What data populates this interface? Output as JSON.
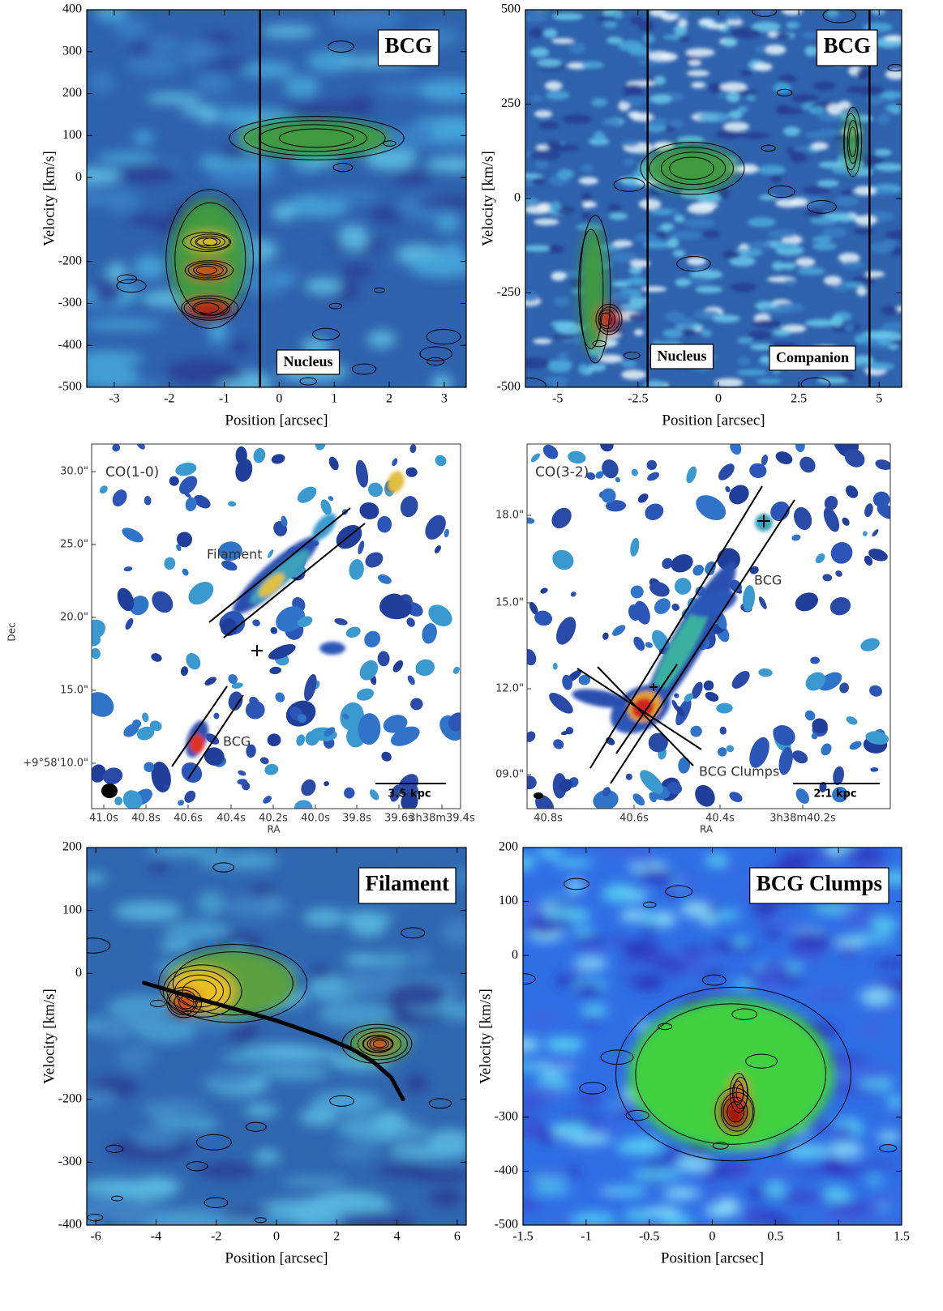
{
  "chart_data": [
    {
      "type": "pv",
      "xlabel": "Position [arcsec]",
      "ylabel": "Velocity [km/s]",
      "title": "BCG",
      "labels": [
        "Nucleus"
      ],
      "xlim": [
        -3.5,
        3.4
      ],
      "ylim": [
        -500,
        400
      ],
      "xticks": [
        -3,
        -2,
        -1,
        0,
        1,
        2,
        3
      ],
      "yticks": [
        -500,
        -400,
        -300,
        -200,
        0,
        100,
        200,
        300,
        400
      ],
      "vlines": [
        -0.35
      ]
    },
    {
      "type": "pv",
      "xlabel": "Position [arcsec]",
      "ylabel": "Velocity [km/s]",
      "title": "BCG",
      "labels": [
        "Nucleus",
        "Companion"
      ],
      "xlim": [
        -6,
        5.7
      ],
      "ylim": [
        -500,
        500
      ],
      "xticks": [
        -5,
        -2.5,
        0,
        2.5,
        5
      ],
      "yticks": [
        -500,
        -250,
        0,
        250,
        500
      ],
      "vlines": [
        -2.2,
        4.7
      ]
    },
    {
      "type": "map",
      "name": "CO(1-0)",
      "annotations": [
        "Filament",
        "BCG"
      ],
      "scale_bar": "3.5 kpc",
      "xlabel": "RA",
      "ylabel": "Dec",
      "ytick_labels": [
        "30.0\"",
        "25.0\"",
        "20.0\"",
        "15.0\"",
        "+9°58'10.0\""
      ],
      "xtick_labels": [
        "41.0s",
        "40.8s",
        "40.6s",
        "40.4s",
        "40.2s",
        "40.0s",
        "39.8s",
        "39.6s",
        "3h38m39.4s"
      ]
    },
    {
      "type": "map",
      "name": "CO(3-2)",
      "annotations": [
        "BCG",
        "BCG Clumps"
      ],
      "scale_bar": "2.1 kpc",
      "xlabel": "RA",
      "ytick_labels": [
        "18.0\"",
        "15.0\"",
        "12.0\"",
        "09.0\""
      ],
      "xtick_labels": [
        "40.8s",
        "40.6s",
        "40.4s",
        "3h38m40.2s"
      ]
    },
    {
      "type": "pv",
      "xlabel": "Position [arcsec]",
      "ylabel": "Velocity [km/s]",
      "title": "Filament",
      "xlim": [
        -6.3,
        6.3
      ],
      "ylim": [
        -400,
        200
      ],
      "xticks": [
        -6,
        -4,
        -2,
        0,
        2,
        4,
        6
      ],
      "yticks": [
        -400,
        -300,
        -200,
        0,
        100,
        200
      ],
      "curve": {
        "x": [
          -4.4,
          -3,
          -1.5,
          0,
          1.5,
          2.5,
          3.2,
          3.8,
          4.2
        ],
        "y": [
          -15,
          -35,
          -55,
          -75,
          -100,
          -120,
          -140,
          -165,
          -200
        ]
      }
    },
    {
      "type": "pv",
      "xlabel": "Position [arcsec]",
      "ylabel": "Velocity [km/s]",
      "title": "BCG Clumps",
      "xlim": [
        -1.5,
        1.5
      ],
      "ylim": [
        -500,
        200
      ],
      "xticks": [
        -1.5,
        -1,
        -0.5,
        0,
        0.5,
        1,
        1.5
      ],
      "yticks": [
        -500,
        -400,
        -300,
        0,
        100,
        200
      ]
    }
  ]
}
